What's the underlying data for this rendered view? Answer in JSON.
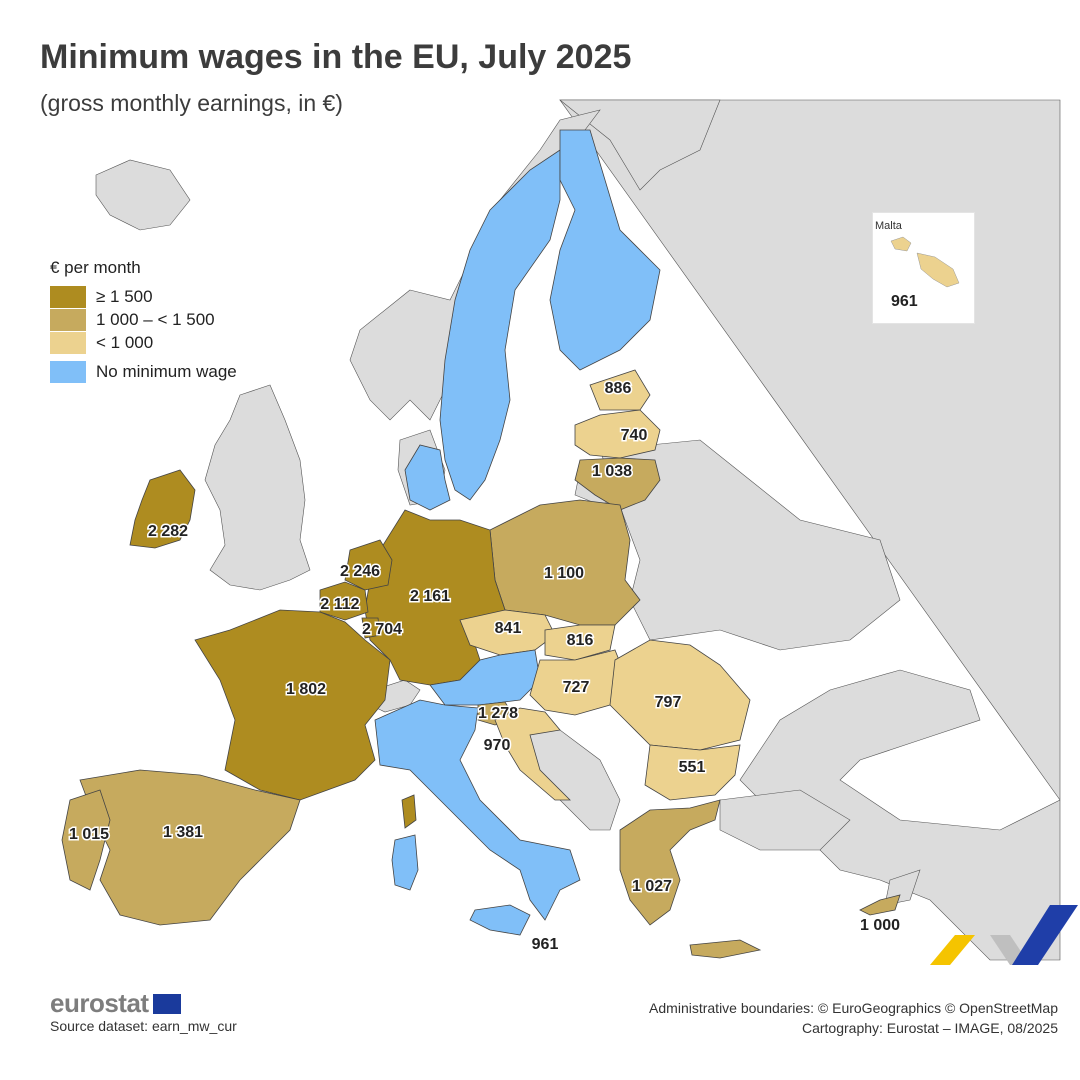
{
  "title": "Minimum wages in the EU, July 2025",
  "subtitle": "(gross monthly earnings, in €)",
  "colors": {
    "ge1500": "#ae8c20",
    "1000to1500": "#c6aa5e",
    "lt1000": "#ecd28f",
    "none": "#80bff8",
    "background_land": "#dcdcdc",
    "sea": "#ffffff"
  },
  "legend": {
    "title": "€ per month",
    "items": [
      {
        "label": "≥ 1 500",
        "color": "#ae8c20"
      },
      {
        "label": "1 000 – < 1 500",
        "color": "#c6aa5e"
      },
      {
        "label": "< 1 000",
        "color": "#ecd28f"
      },
      {
        "label": "No minimum wage",
        "color": "#80bff8"
      }
    ]
  },
  "countries": [
    {
      "name": "Ireland",
      "value": "2 282",
      "class": "ge1500"
    },
    {
      "name": "Netherlands",
      "value": "2 246",
      "class": "ge1500"
    },
    {
      "name": "Belgium",
      "value": "2 112",
      "class": "ge1500"
    },
    {
      "name": "Luxembourg",
      "value": "2 704",
      "class": "ge1500"
    },
    {
      "name": "Germany",
      "value": "2 161",
      "class": "ge1500"
    },
    {
      "name": "France",
      "value": "1 802",
      "class": "ge1500"
    },
    {
      "name": "Spain",
      "value": "1 381",
      "class": "1000to1500"
    },
    {
      "name": "Portugal",
      "value": "1 015",
      "class": "1000to1500"
    },
    {
      "name": "Poland",
      "value": "1 100",
      "class": "1000to1500"
    },
    {
      "name": "Slovenia",
      "value": "1 278",
      "class": "1000to1500"
    },
    {
      "name": "Greece",
      "value": "1 027",
      "class": "1000to1500"
    },
    {
      "name": "Lithuania",
      "value": "1 038",
      "class": "1000to1500"
    },
    {
      "name": "Cyprus",
      "value": "1 000",
      "class": "1000to1500"
    },
    {
      "name": "Czechia",
      "value": "841",
      "class": "lt1000"
    },
    {
      "name": "Slovakia",
      "value": "816",
      "class": "lt1000"
    },
    {
      "name": "Hungary",
      "value": "727",
      "class": "lt1000"
    },
    {
      "name": "Romania",
      "value": "797",
      "class": "lt1000"
    },
    {
      "name": "Bulgaria",
      "value": "551",
      "class": "lt1000"
    },
    {
      "name": "Croatia",
      "value": "970",
      "class": "lt1000"
    },
    {
      "name": "Estonia",
      "value": "886",
      "class": "lt1000"
    },
    {
      "name": "Latvia",
      "value": "740",
      "class": "lt1000"
    },
    {
      "name": "Malta",
      "value": "961",
      "class": "lt1000"
    },
    {
      "name": "Sweden",
      "value": null,
      "class": "none"
    },
    {
      "name": "Finland",
      "value": null,
      "class": "none"
    },
    {
      "name": "Denmark",
      "value": null,
      "class": "none"
    },
    {
      "name": "Austria",
      "value": null,
      "class": "none"
    },
    {
      "name": "Italy",
      "value": null,
      "class": "none"
    }
  ],
  "inset": {
    "title": "Malta",
    "value": "961"
  },
  "footer": {
    "brand": "eurostat",
    "source": "Source dataset: earn_mw_cur",
    "boundaries": "Administrative boundaries: © EuroGeographics © OpenStreetMap",
    "cartography": "Cartography: Eurostat – IMAGE, 08/2025"
  }
}
